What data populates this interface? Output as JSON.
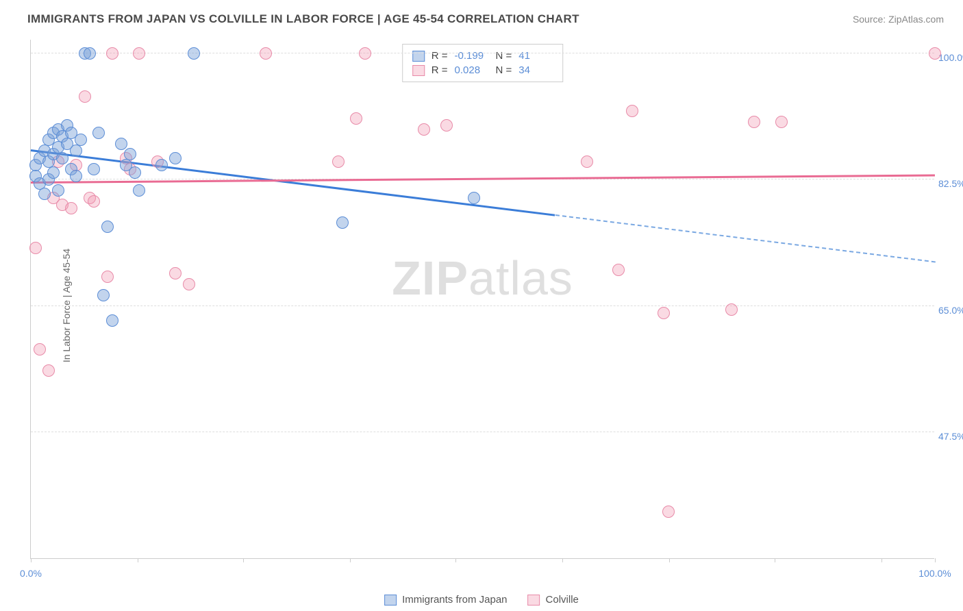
{
  "title": "IMMIGRANTS FROM JAPAN VS COLVILLE IN LABOR FORCE | AGE 45-54 CORRELATION CHART",
  "source_label": "Source: ",
  "source_name": "ZipAtlas.com",
  "ylabel": "In Labor Force | Age 45-54",
  "watermark": "ZIPatlas",
  "chart": {
    "type": "scatter",
    "xlim": [
      0,
      100
    ],
    "ylim": [
      30,
      102
    ],
    "x_ticks": [
      0,
      11.8,
      23.5,
      35.3,
      47.0,
      58.8,
      70.6,
      82.3,
      94.1,
      100
    ],
    "x_tick_labels": {
      "0": "0.0%",
      "100": "100.0%"
    },
    "y_gridlines": [
      47.5,
      65.0,
      82.5,
      100.0
    ],
    "y_tick_labels": [
      "47.5%",
      "65.0%",
      "82.5%",
      "100.0%"
    ],
    "background_color": "#ffffff",
    "grid_color": "#dddddd",
    "axis_color": "#cccccc",
    "tick_label_color": "#5b8dd6",
    "series": [
      {
        "name": "Immigrants from Japan",
        "color_fill": "rgba(120,160,215,0.45)",
        "color_stroke": "#5b8dd6",
        "marker_size": 18,
        "R": "-0.199",
        "N": "41",
        "trend": {
          "x0": 0,
          "y0": 86.5,
          "x1": 58,
          "y1": 77.5,
          "x2": 100,
          "y2": 71.0,
          "color": "#3b7dd8",
          "dash_after_x": 58
        },
        "points": [
          [
            0.5,
            84.5
          ],
          [
            0.5,
            83.0
          ],
          [
            1.0,
            85.5
          ],
          [
            1.0,
            82.0
          ],
          [
            1.5,
            86.5
          ],
          [
            1.5,
            80.5
          ],
          [
            2.0,
            88.0
          ],
          [
            2.0,
            85.0
          ],
          [
            2.0,
            82.5
          ],
          [
            2.5,
            89.0
          ],
          [
            2.5,
            86.0
          ],
          [
            2.5,
            83.5
          ],
          [
            3.0,
            89.5
          ],
          [
            3.0,
            87.0
          ],
          [
            3.0,
            81.0
          ],
          [
            3.5,
            88.5
          ],
          [
            3.5,
            85.5
          ],
          [
            4.0,
            90.0
          ],
          [
            4.0,
            87.5
          ],
          [
            4.5,
            89.0
          ],
          [
            4.5,
            84.0
          ],
          [
            5.0,
            86.5
          ],
          [
            5.0,
            83.0
          ],
          [
            5.5,
            88.0
          ],
          [
            6.0,
            100.0
          ],
          [
            6.5,
            100.0
          ],
          [
            7.0,
            84.0
          ],
          [
            7.5,
            89.0
          ],
          [
            8.0,
            66.5
          ],
          [
            8.5,
            76.0
          ],
          [
            9.0,
            63.0
          ],
          [
            10.0,
            87.5
          ],
          [
            10.5,
            84.5
          ],
          [
            11.0,
            86.0
          ],
          [
            11.5,
            83.5
          ],
          [
            12.0,
            81.0
          ],
          [
            14.5,
            84.5
          ],
          [
            16.0,
            85.5
          ],
          [
            18.0,
            100.0
          ],
          [
            34.5,
            76.5
          ],
          [
            49.0,
            80.0
          ]
        ]
      },
      {
        "name": "Colville",
        "color_fill": "rgba(240,150,175,0.35)",
        "color_stroke": "#e88aa8",
        "marker_size": 18,
        "R": "0.028",
        "N": "34",
        "trend": {
          "x0": 0,
          "y0": 82.0,
          "x1": 100,
          "y1": 83.0,
          "color": "#e96b93"
        },
        "points": [
          [
            0.5,
            73.0
          ],
          [
            1.0,
            59.0
          ],
          [
            2.0,
            56.0
          ],
          [
            2.5,
            80.0
          ],
          [
            3.0,
            85.0
          ],
          [
            3.5,
            79.0
          ],
          [
            4.5,
            78.5
          ],
          [
            5.0,
            84.5
          ],
          [
            6.0,
            94.0
          ],
          [
            6.5,
            80.0
          ],
          [
            7.0,
            79.5
          ],
          [
            8.5,
            69.0
          ],
          [
            9.0,
            100.0
          ],
          [
            10.5,
            85.5
          ],
          [
            11.0,
            84.0
          ],
          [
            12.0,
            100.0
          ],
          [
            14.0,
            85.0
          ],
          [
            16.0,
            69.5
          ],
          [
            17.5,
            68.0
          ],
          [
            26.0,
            100.0
          ],
          [
            34.0,
            85.0
          ],
          [
            36.0,
            91.0
          ],
          [
            37.0,
            100.0
          ],
          [
            43.5,
            89.5
          ],
          [
            46.0,
            90.0
          ],
          [
            61.5,
            85.0
          ],
          [
            65.0,
            70.0
          ],
          [
            66.5,
            92.0
          ],
          [
            70.0,
            64.0
          ],
          [
            70.5,
            36.5
          ],
          [
            77.5,
            64.5
          ],
          [
            80.0,
            90.5
          ],
          [
            83.0,
            90.5
          ],
          [
            100.0,
            100.0
          ]
        ]
      }
    ]
  },
  "legend_bottom": [
    "Immigrants from Japan",
    "Colville"
  ]
}
